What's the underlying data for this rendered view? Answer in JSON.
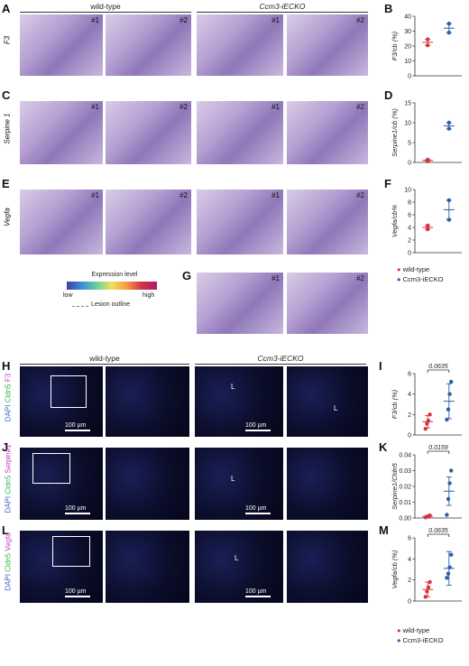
{
  "panel_letters": {
    "A": "A",
    "B": "B",
    "C": "C",
    "D": "D",
    "E": "E",
    "F": "F",
    "G": "G",
    "H": "H",
    "I": "I",
    "J": "J",
    "K": "K",
    "L": "L",
    "M": "M"
  },
  "groups": {
    "wt": "wild-type",
    "ko": "Ccm3-iECKO"
  },
  "section_numbers": {
    "n1": "#1",
    "n2": "#2"
  },
  "row_labels": {
    "A": "F3",
    "C": "Serpine 1",
    "E": "Vegfa"
  },
  "expression_legend": {
    "title": "Expression level",
    "low": "low",
    "high": "high",
    "lesion": "Lesion outline"
  },
  "if_stain_labels": {
    "H": [
      "DAPI",
      " Cldn5 ",
      "F3"
    ],
    "J": [
      "DAPI",
      " Cldn5 ",
      "Serpine1"
    ],
    "L": [
      "DAPI",
      " Cldn5 ",
      "Vegfa"
    ]
  },
  "if_colors": {
    "dapi": "#3b63c9",
    "cldn5": "#2fb54a",
    "target": "#c03ac7"
  },
  "scale_bar": "100 µm",
  "lumen_label": "L",
  "legend": {
    "wt": "wild-type",
    "ko": "Ccm3-iECKO",
    "wt_color": "#d6353f",
    "ko_color": "#2b5fa3"
  },
  "chart_data": [
    {
      "id": "B",
      "type": "scatter",
      "ylabel": "F3/cb (%)",
      "ylim": [
        0,
        40
      ],
      "yticks": [
        0,
        10,
        20,
        30,
        40
      ],
      "categories": [
        "wild-type",
        "Ccm3-iECKO"
      ],
      "series": [
        {
          "name": "wild-type",
          "color": "#d6353f",
          "points": [
            20.5,
            24.5
          ],
          "mean": 22.5,
          "err": 2
        },
        {
          "name": "Ccm3-iECKO",
          "color": "#2b5fa3",
          "points": [
            29,
            35
          ],
          "mean": 32,
          "err": 3
        }
      ]
    },
    {
      "id": "D",
      "type": "scatter",
      "ylabel": "Serpine1/cb (%)",
      "ylim": [
        0,
        15
      ],
      "yticks": [
        0,
        5,
        10,
        15
      ],
      "categories": [
        "wild-type",
        "Ccm3-iECKO"
      ],
      "series": [
        {
          "name": "wild-type",
          "color": "#d6353f",
          "points": [
            0.3,
            0.7
          ],
          "mean": 0.5,
          "err": 0.2
        },
        {
          "name": "Ccm3-iECKO",
          "color": "#2b5fa3",
          "points": [
            8.5,
            10
          ],
          "mean": 9.2,
          "err": 0.8
        }
      ]
    },
    {
      "id": "F",
      "type": "scatter",
      "ylabel": "Vegfa/cb%",
      "ylim": [
        0,
        10
      ],
      "yticks": [
        0,
        2,
        4,
        6,
        8,
        10
      ],
      "categories": [
        "wild-type",
        "Ccm3-iECKO"
      ],
      "series": [
        {
          "name": "wild-type",
          "color": "#d6353f",
          "points": [
            3.7,
            4.3
          ],
          "mean": 4,
          "err": 0.3
        },
        {
          "name": "Ccm3-iECKO",
          "color": "#2b5fa3",
          "points": [
            5.2,
            8.3
          ],
          "mean": 6.8,
          "err": 1.5
        }
      ]
    },
    {
      "id": "I",
      "type": "scatter",
      "ylabel": "F3/cb (%)",
      "ylim": [
        0,
        6
      ],
      "yticks": [
        0,
        2,
        4,
        6
      ],
      "pvalue": "0.0635",
      "categories": [
        "wild-type",
        "Ccm3-iECKO"
      ],
      "series": [
        {
          "name": "wild-type",
          "color": "#d6353f",
          "points": [
            0.6,
            1.1,
            1.4,
            2.0
          ],
          "mean": 1.3,
          "err": 0.6
        },
        {
          "name": "Ccm3-iECKO",
          "color": "#2b5fa3",
          "points": [
            1.5,
            2.5,
            4.0,
            5.2
          ],
          "mean": 3.3,
          "err": 1.7
        }
      ]
    },
    {
      "id": "K",
      "type": "scatter",
      "ylabel": "Serpine1/Cldn5",
      "ylim": [
        0,
        0.04
      ],
      "yticks": [
        0.0,
        0.01,
        0.02,
        0.03,
        0.04
      ],
      "pvalue": "0.0159",
      "categories": [
        "wild-type",
        "Ccm3-iECKO"
      ],
      "series": [
        {
          "name": "wild-type",
          "color": "#d6353f",
          "points": [
            0.0004,
            0.0008,
            0.0012,
            0.0016
          ],
          "mean": 0.001,
          "err": 0.0005
        },
        {
          "name": "Ccm3-iECKO",
          "color": "#2b5fa3",
          "points": [
            0.002,
            0.012,
            0.022,
            0.03
          ],
          "mean": 0.017,
          "err": 0.009
        }
      ]
    },
    {
      "id": "M",
      "type": "scatter",
      "ylabel": "Vegfa/cb (%)",
      "ylim": [
        0,
        6
      ],
      "yticks": [
        0,
        2,
        4,
        6
      ],
      "pvalue": "0.0635",
      "categories": [
        "wild-type",
        "Ccm3-iECKO"
      ],
      "series": [
        {
          "name": "wild-type",
          "color": "#d6353f",
          "points": [
            0.4,
            0.9,
            1.3,
            1.8
          ],
          "mean": 1.1,
          "err": 0.7
        },
        {
          "name": "Ccm3-iECKO",
          "color": "#2b5fa3",
          "points": [
            2.2,
            2.6,
            3.2,
            4.4
          ],
          "mean": 3.1,
          "err": 1.6
        }
      ]
    }
  ]
}
